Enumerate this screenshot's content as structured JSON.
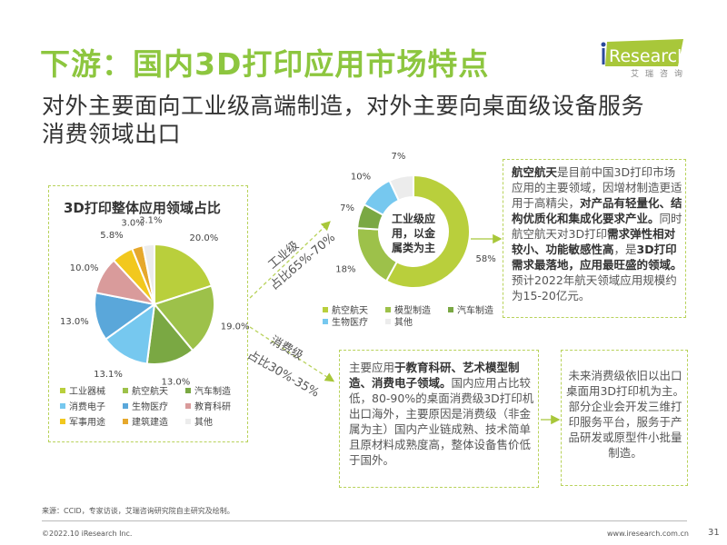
{
  "header": {
    "title": "下游：国内3D打印应用市场特点",
    "subtitle_line1": "对外主要面向工业级高端制造，对外主要向桌面级设备服务",
    "subtitle_line2": "消费领域出口",
    "logo_text": "iResearch",
    "logo_sub": "艾瑞咨询"
  },
  "colors": {
    "accent": "#8dc63f",
    "border": "#b8d25a"
  },
  "chart_data": [
    {
      "type": "pie",
      "title": "3D打印整体应用领域占比",
      "categories": [
        "工业器械",
        "航空航天",
        "汽车制造",
        "消费电子",
        "生物医疗",
        "教育科研",
        "军事用途",
        "建筑建造",
        "其他"
      ],
      "values": [
        20.0,
        19.0,
        13.0,
        13.1,
        13.0,
        10.0,
        5.8,
        3.0,
        3.1
      ],
      "labels": [
        "20.0%",
        "19.0%",
        "13.0%",
        "13.1%",
        "13.0%",
        "10.0%",
        "5.8%",
        "3.0%",
        "3.1%"
      ],
      "colors": [
        "#b9cf3c",
        "#9dc14a",
        "#7aa843",
        "#76c8ef",
        "#5aa7da",
        "#d99b9b",
        "#f2c81e",
        "#e6a82c",
        "#ececec"
      ],
      "legend_position": "bottom"
    },
    {
      "type": "pie",
      "subtype": "donut",
      "center_text": [
        "工业级应",
        "用，以金",
        "属类为主"
      ],
      "categories": [
        "航空航天",
        "模型制造",
        "汽车制造",
        "生物医疗",
        "其他"
      ],
      "values": [
        58,
        18,
        7,
        10,
        7
      ],
      "labels": [
        "58%",
        "18%",
        "7%",
        "10%",
        "7%"
      ],
      "colors": [
        "#b9cf3c",
        "#9dc14a",
        "#7aa843",
        "#76c8ef",
        "#ececec"
      ],
      "legend_position": "bottom"
    }
  ],
  "arrows": {
    "industrial_label": "工业级",
    "industrial_share": "占比65%-70%",
    "consumer_label": "消费级",
    "consumer_share": "占比30%-35%"
  },
  "boxes": {
    "aerospace": [
      {
        "t": "航空航天",
        "b": true
      },
      {
        "t": "是目前中国3D打印市场应用的主要领域，因增材制造更适用于高精尖，"
      },
      {
        "t": "对产品有轻量化、结构优质化和集成化要求产业。",
        "b": true
      },
      {
        "t": "同时航空航天对3D打印"
      },
      {
        "t": "需求弹性相对较小、功能敏感性高",
        "b": true
      },
      {
        "t": "，是"
      },
      {
        "t": "3D打印需求最落地，应用最旺盛的领域。",
        "b": true
      },
      {
        "t": "预计2022年航天领域应用规模约为15-20亿元。"
      }
    ],
    "consumer": [
      {
        "t": "主要应用"
      },
      {
        "t": "于教育科研、艺术模型制造、消费电子领域。",
        "b": true
      },
      {
        "t": "国内应用占比较低，80-90%的桌面消费级3D打印机出口海外，主要原因是消费级（非金属为主）国内产业链成熟、技术简单且原材料成熟度高，整体设备售价低于国外。"
      }
    ],
    "future": [
      {
        "t": "未来消费级依旧以出口桌面用3D打印机为主。"
      },
      {
        "t": "部分企业会开发三维打印服务平台，服务于产品研发或原型件小批量制造。"
      }
    ]
  },
  "footer": {
    "source": "来源：CCID，专家访谈，艾瑞咨询研究院自主研究及绘制。",
    "copyright": "©2022.10 iResearch Inc.",
    "url": "www.iresearch.com.cn",
    "page": "31"
  }
}
